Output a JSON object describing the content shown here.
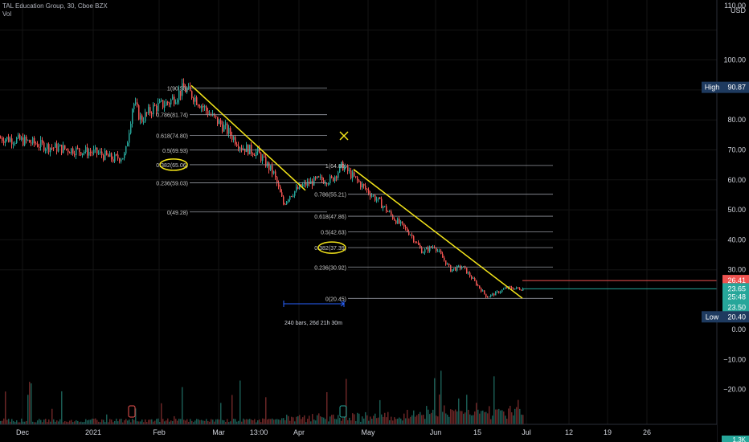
{
  "header": {
    "symbol_line": "TAL Education Group, 30, Cboe BZX",
    "volume_label": "Vol"
  },
  "price_axis": {
    "currency": "USD",
    "ticks": [
      "110.00",
      "100.00",
      "90.00",
      "80.00",
      "70.00",
      "60.00",
      "50.00",
      "40.00",
      "30.00",
      "0.00",
      "−10.00",
      "−20.00"
    ],
    "tick_values": [
      110,
      100,
      90,
      80,
      70,
      60,
      50,
      40,
      30,
      0,
      -10,
      -20
    ],
    "bottom_partial": "1.3K",
    "badges": [
      {
        "key": "high",
        "label": "High",
        "value": "90.87",
        "price": 90.87,
        "color": "#1e3a5f"
      },
      {
        "key": "current",
        "value": "26.41",
        "price": 26.41,
        "color": "#ef5350"
      },
      {
        "key": "close",
        "value": "23.65",
        "price": 23.65,
        "color": "#26a69a"
      },
      {
        "key": "countdown",
        "value": "25:48",
        "price": 21.0,
        "color": "#26a69a"
      },
      {
        "key": "close2",
        "value": "23.50",
        "price": 17.5,
        "color": "#26a69a"
      },
      {
        "key": "low",
        "label": "Low",
        "value": "20.40",
        "price": 14.3,
        "color": "#1e3a5f"
      }
    ]
  },
  "time_axis": {
    "labels": [
      "Dec",
      "2021",
      "Feb",
      "Mar",
      "13:00",
      "Apr",
      "May",
      "Jun",
      "15",
      "Jul",
      "12",
      "19",
      "26"
    ],
    "positions": [
      28,
      116,
      198,
      272,
      322,
      372,
      458,
      542,
      594,
      655,
      708,
      756,
      805
    ]
  },
  "fib1": {
    "levels": [
      {
        "label": "1(90.58)",
        "price": 90.58
      },
      {
        "label": "0.786(81.74)",
        "price": 81.74
      },
      {
        "label": "0.618(74.80)",
        "price": 74.8
      },
      {
        "label": "0.5(69.93)",
        "price": 69.93
      },
      {
        "label": "0.382(65.06)",
        "price": 65.06
      },
      {
        "label": "0.236(59.03)",
        "price": 59.03
      },
      {
        "label": "0(49.28)",
        "price": 49.28
      }
    ]
  },
  "fib2": {
    "levels": [
      {
        "label": "1(64.80)",
        "price": 64.8
      },
      {
        "label": "0.786(55.21)",
        "price": 55.21
      },
      {
        "label": "0.618(47.86)",
        "price": 47.86
      },
      {
        "label": "0.5(42.63)",
        "price": 42.63
      },
      {
        "label": "0.382(37.39)",
        "price": 37.39
      },
      {
        "label": "0.236(30.92)",
        "price": 30.92
      },
      {
        "label": "0(20.45)",
        "price": 20.45
      }
    ]
  },
  "measure": {
    "label": "240 bars, 26d 21h 30m"
  },
  "colors": {
    "up": "#26a69a",
    "down": "#ef5350",
    "trendline": "#f5e61a",
    "fib_line": "#9598a1",
    "axis_text": "#d1d4dc",
    "measure": "#2962ff"
  },
  "chart_data": {
    "type": "candlestick",
    "price_path": [
      [
        0,
        74
      ],
      [
        30,
        73
      ],
      [
        60,
        71
      ],
      [
        90,
        70
      ],
      [
        120,
        69
      ],
      [
        140,
        67
      ],
      [
        155,
        68
      ],
      [
        165,
        86
      ],
      [
        175,
        80
      ],
      [
        190,
        84
      ],
      [
        210,
        86
      ],
      [
        228,
        90.5
      ],
      [
        240,
        88
      ],
      [
        260,
        82
      ],
      [
        280,
        77
      ],
      [
        300,
        71
      ],
      [
        320,
        69
      ],
      [
        340,
        62
      ],
      [
        352,
        52
      ],
      [
        360,
        55
      ],
      [
        375,
        58
      ],
      [
        395,
        60
      ],
      [
        412,
        60
      ],
      [
        425,
        64.8
      ],
      [
        435,
        62
      ],
      [
        450,
        58
      ],
      [
        470,
        53
      ],
      [
        490,
        47
      ],
      [
        510,
        42
      ],
      [
        525,
        36
      ],
      [
        540,
        38
      ],
      [
        560,
        30
      ],
      [
        575,
        31
      ],
      [
        590,
        26
      ],
      [
        605,
        21
      ],
      [
        615,
        22
      ],
      [
        630,
        24
      ],
      [
        650,
        23.6
      ]
    ],
    "trendlines": [
      {
        "from": [
          238,
          91.5
        ],
        "to": [
          380,
          56.5
        ]
      },
      {
        "from": [
          440,
          63.5
        ],
        "to": [
          650,
          20.5
        ]
      }
    ]
  }
}
